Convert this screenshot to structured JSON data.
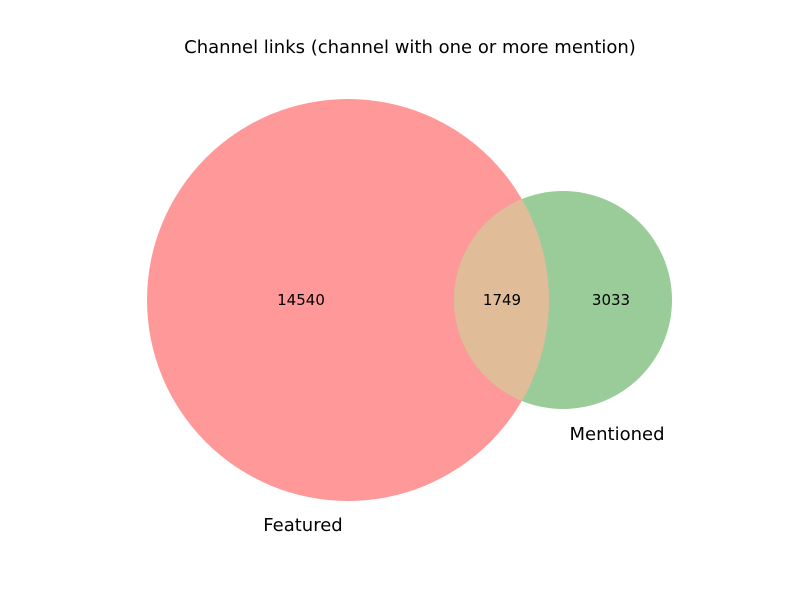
{
  "chart_data": {
    "type": "venn",
    "title": "Channel links (channel with one or more mention)",
    "sets": [
      {
        "name": "Featured",
        "only": 14540,
        "color": "#ff9999"
      },
      {
        "name": "Mentioned",
        "only": 3033,
        "color": "#99cc99"
      }
    ],
    "intersection": 1749,
    "intersection_color": "#e0bc99"
  }
}
